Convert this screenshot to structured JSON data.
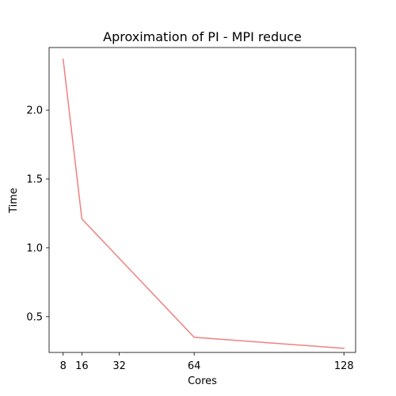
{
  "chart_data": {
    "type": "line",
    "title": "Aproximation of PI - MPI reduce",
    "xlabel": "Cores",
    "ylabel": "Time",
    "x": [
      8,
      16,
      64,
      128
    ],
    "xticks": [
      8,
      16,
      32,
      64,
      128
    ],
    "xtick_labels": [
      "8",
      "16",
      "32",
      "64",
      "128"
    ],
    "yticks": [
      0.5,
      1.0,
      1.5,
      2.0
    ],
    "ytick_labels": [
      "0.5",
      "1.0",
      "1.5",
      "2.0"
    ],
    "xlim": [
      2,
      133
    ],
    "ylim": [
      0.24,
      2.455
    ],
    "grid": false,
    "series": [
      {
        "name": "MPI reduce",
        "color": "#f08080",
        "values": [
          2.37,
          1.21,
          0.35,
          0.27
        ]
      }
    ]
  }
}
